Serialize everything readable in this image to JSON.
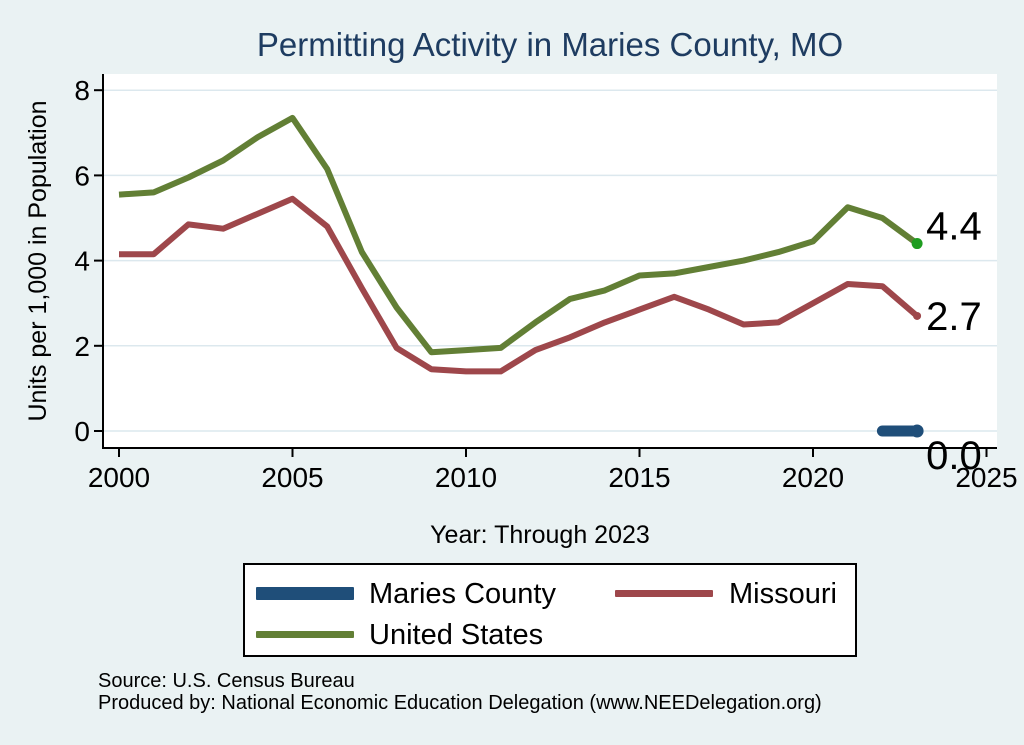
{
  "title": "Permitting Activity in Maries County, MO",
  "colors": {
    "background": "#eaf2f3",
    "plot_background": "#ffffff",
    "gridline": "#dce8ee",
    "axis": "#000000",
    "title_text": "#1e3c61",
    "maries_blue": "#1f4e79",
    "missouri_red": "#9e474b",
    "us_green": "#627f35",
    "us_end_marker_green": "#1f9d20"
  },
  "chart_data": {
    "type": "line",
    "title": "Permitting Activity in Maries County, MO",
    "xlabel": "Year: Through 2023",
    "ylabel": "Units per 1,000 in Population",
    "x_ticks": [
      2000,
      2005,
      2010,
      2015,
      2020,
      2025
    ],
    "y_ticks": [
      0,
      2,
      4,
      6,
      8
    ],
    "xlim": [
      1999.5,
      2025.4
    ],
    "ylim": [
      -0.4,
      8.4
    ],
    "grid": true,
    "legend_position": "below-plot",
    "series": [
      {
        "name": "Maries County",
        "color": "#1f4e79",
        "line_width": 11,
        "x": [
          2022,
          2023
        ],
        "values": [
          0.0,
          0.0
        ],
        "end_label": "0.0",
        "end_marker": {
          "color": "#1f4e79",
          "radius": 6.5
        }
      },
      {
        "name": "Missouri",
        "color": "#9e474b",
        "line_width": 6,
        "x": [
          2000,
          2001,
          2002,
          2003,
          2004,
          2005,
          2006,
          2007,
          2008,
          2009,
          2010,
          2011,
          2012,
          2013,
          2014,
          2015,
          2016,
          2017,
          2018,
          2019,
          2020,
          2021,
          2022,
          2023
        ],
        "values": [
          4.15,
          4.15,
          4.85,
          4.75,
          5.1,
          5.45,
          4.8,
          3.35,
          1.95,
          1.45,
          1.4,
          1.4,
          1.9,
          2.2,
          2.55,
          2.85,
          3.15,
          2.85,
          2.5,
          2.55,
          3.0,
          3.45,
          3.4,
          2.7
        ],
        "end_label": "2.7",
        "end_marker": {
          "color": "#9e474b",
          "radius": 4
        }
      },
      {
        "name": "United States",
        "color": "#627f35",
        "line_width": 6,
        "x": [
          2000,
          2001,
          2002,
          2003,
          2004,
          2005,
          2006,
          2007,
          2008,
          2009,
          2010,
          2011,
          2012,
          2013,
          2014,
          2015,
          2016,
          2017,
          2018,
          2019,
          2020,
          2021,
          2022,
          2023
        ],
        "values": [
          5.55,
          5.6,
          5.95,
          6.35,
          6.9,
          7.35,
          6.15,
          4.2,
          2.9,
          1.85,
          1.9,
          1.95,
          2.55,
          3.1,
          3.3,
          3.65,
          3.7,
          3.85,
          4.0,
          4.2,
          4.45,
          5.25,
          5.0,
          4.4
        ],
        "end_label": "4.4",
        "end_marker": {
          "color": "#1f9d20",
          "radius": 5.5
        }
      }
    ]
  },
  "legend": {
    "items": [
      {
        "key": "maries-county",
        "label": "Maries County",
        "color": "#1f4e79",
        "thickness": 13
      },
      {
        "key": "missouri",
        "label": "Missouri",
        "color": "#9e474b",
        "thickness": 7
      },
      {
        "key": "united-states",
        "label": "United States",
        "color": "#627f35",
        "thickness": 7
      }
    ]
  },
  "footer": {
    "line1": "Source: U.S. Census Bureau",
    "line2": "Produced by: National Economic Education Delegation (www.NEEDelegation.org)"
  }
}
